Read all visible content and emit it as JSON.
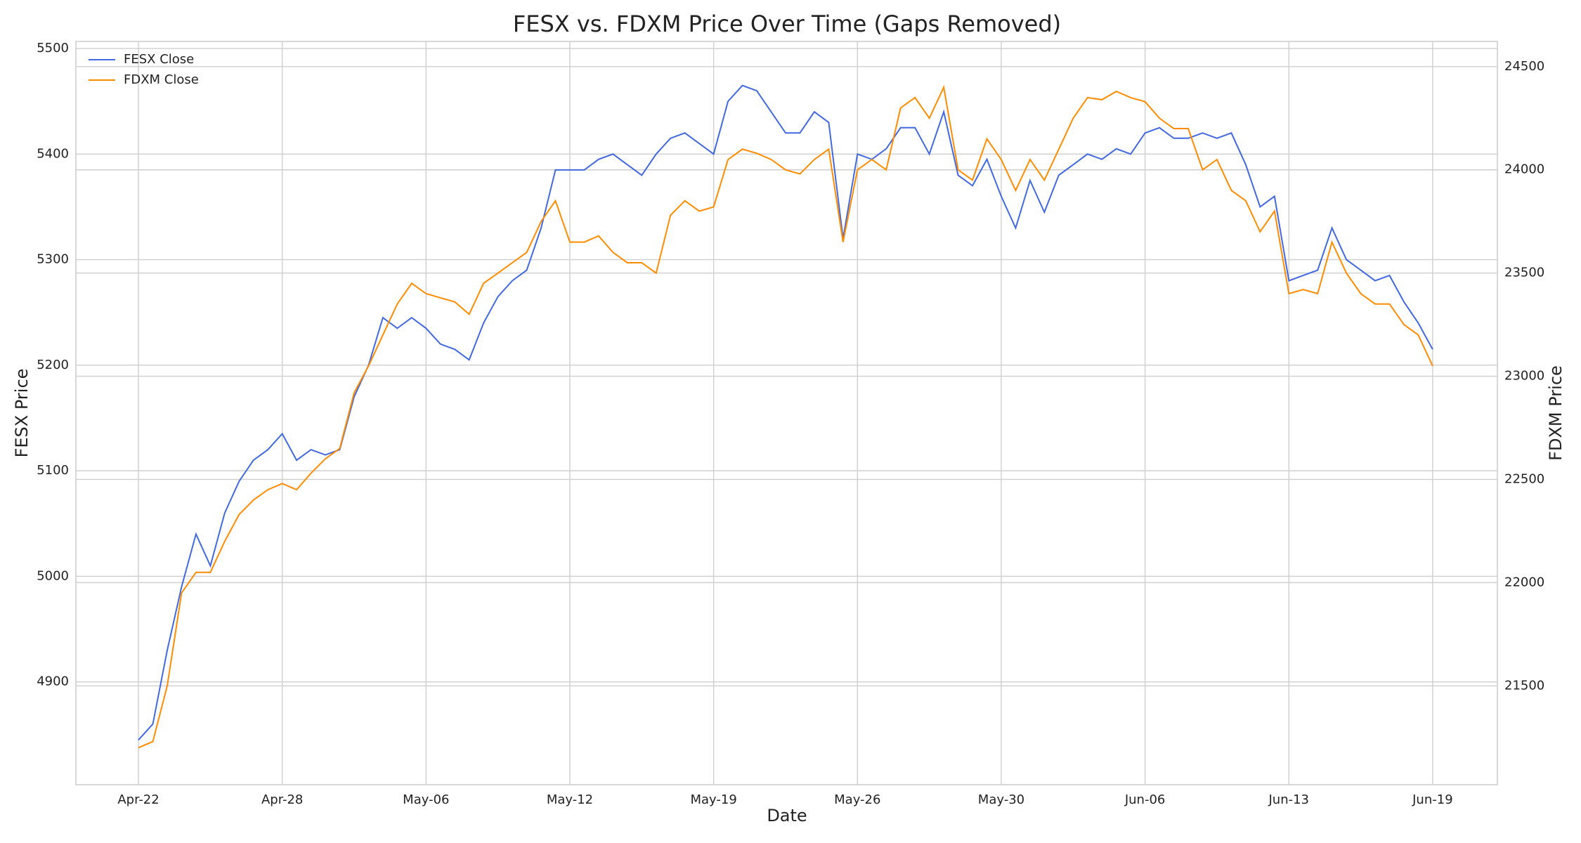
{
  "chart_data": {
    "type": "line",
    "title": "FESX vs. FDXM Price Over Time (Gaps Removed)",
    "x_label": "Date",
    "y_label": "FESX Price",
    "y2_label": "FDXM Price",
    "x": [
      0,
      1,
      2,
      3,
      4,
      5,
      6,
      7,
      8,
      9,
      10,
      11,
      12,
      13,
      14,
      15,
      16,
      17,
      18,
      19,
      20,
      21,
      22,
      23,
      24,
      25,
      26,
      27,
      28,
      29,
      30,
      31,
      32,
      33,
      34,
      35,
      36,
      37,
      38,
      39,
      40,
      41,
      42,
      43,
      44,
      45,
      46,
      47,
      48,
      49,
      50,
      51,
      52,
      53,
      54,
      55,
      56,
      57,
      58,
      59,
      60,
      61,
      62,
      63,
      64,
      65,
      66,
      67,
      68,
      69,
      70,
      71,
      72,
      73,
      74,
      75,
      76,
      77,
      78,
      79,
      80,
      81,
      82,
      83,
      84,
      85,
      86,
      87,
      88,
      89,
      90
    ],
    "series": [
      {
        "name": "FESX Close",
        "color": "#4169e1",
        "axis": "y",
        "values": [
          4845,
          4860,
          4930,
          4990,
          5040,
          5010,
          5060,
          5090,
          5110,
          5120,
          5135,
          5110,
          5120,
          5115,
          5120,
          5170,
          5200,
          5245,
          5235,
          5245,
          5235,
          5220,
          5215,
          5205,
          5240,
          5265,
          5280,
          5290,
          5330,
          5385,
          5385,
          5385,
          5395,
          5400,
          5390,
          5380,
          5400,
          5415,
          5420,
          5410,
          5400,
          5450,
          5465,
          5460,
          5440,
          5420,
          5420,
          5440,
          5430,
          5320,
          5400,
          5395,
          5405,
          5425,
          5425,
          5400,
          5440,
          5380,
          5370,
          5395,
          5360,
          5330,
          5375,
          5345,
          5380,
          5390,
          5400,
          5395,
          5405,
          5400,
          5420,
          5425,
          5415,
          5415,
          5420,
          5415,
          5420,
          5390,
          5350,
          5360,
          5280,
          5285,
          5290,
          5330,
          5300,
          5290,
          5280,
          5285,
          5260,
          5240,
          5215
        ]
      },
      {
        "name": "FDXM Close",
        "color": "#ff8c00",
        "axis": "y2",
        "values": [
          21200,
          21230,
          21500,
          21950,
          22050,
          22050,
          22200,
          22330,
          22400,
          22450,
          22480,
          22450,
          22530,
          22600,
          22650,
          22920,
          23050,
          23200,
          23350,
          23450,
          23400,
          23380,
          23360,
          23300,
          23450,
          23500,
          23550,
          23600,
          23750,
          23850,
          23650,
          23650,
          23680,
          23600,
          23550,
          23550,
          23500,
          23780,
          23850,
          23800,
          23820,
          24050,
          24100,
          24080,
          24050,
          24000,
          23980,
          24050,
          24100,
          23650,
          24000,
          24050,
          24000,
          24300,
          24350,
          24250,
          24400,
          24000,
          23950,
          24150,
          24050,
          23900,
          24050,
          23950,
          24100,
          24250,
          24350,
          24340,
          24380,
          24350,
          24330,
          24250,
          24200,
          24200,
          24000,
          24050,
          23900,
          23850,
          23700,
          23800,
          23400,
          23420,
          23400,
          23650,
          23500,
          23400,
          23350,
          23350,
          23250,
          23200,
          23050
        ]
      }
    ],
    "xlim": [
      -4.35,
      94.5
    ],
    "xticks": [
      {
        "value": 0,
        "label": "Apr-22"
      },
      {
        "value": 10,
        "label": "Apr-28"
      },
      {
        "value": 20,
        "label": "May-06"
      },
      {
        "value": 30,
        "label": "May-12"
      },
      {
        "value": 40,
        "label": "May-19"
      },
      {
        "value": 50,
        "label": "May-26"
      },
      {
        "value": 60,
        "label": "May-30"
      },
      {
        "value": 70,
        "label": "Jun-06"
      },
      {
        "value": 80,
        "label": "Jun-13"
      },
      {
        "value": 90,
        "label": "Jun-19"
      }
    ],
    "ylim": [
      4802.6,
      5506.7
    ],
    "yticks": [
      4900,
      5000,
      5100,
      5200,
      5300,
      5400,
      5500
    ],
    "y2lim": [
      21021,
      24622
    ],
    "y2ticks": [
      21500,
      22000,
      22500,
      23000,
      23500,
      24000,
      24500
    ],
    "grid": true,
    "legend": "upper left"
  }
}
